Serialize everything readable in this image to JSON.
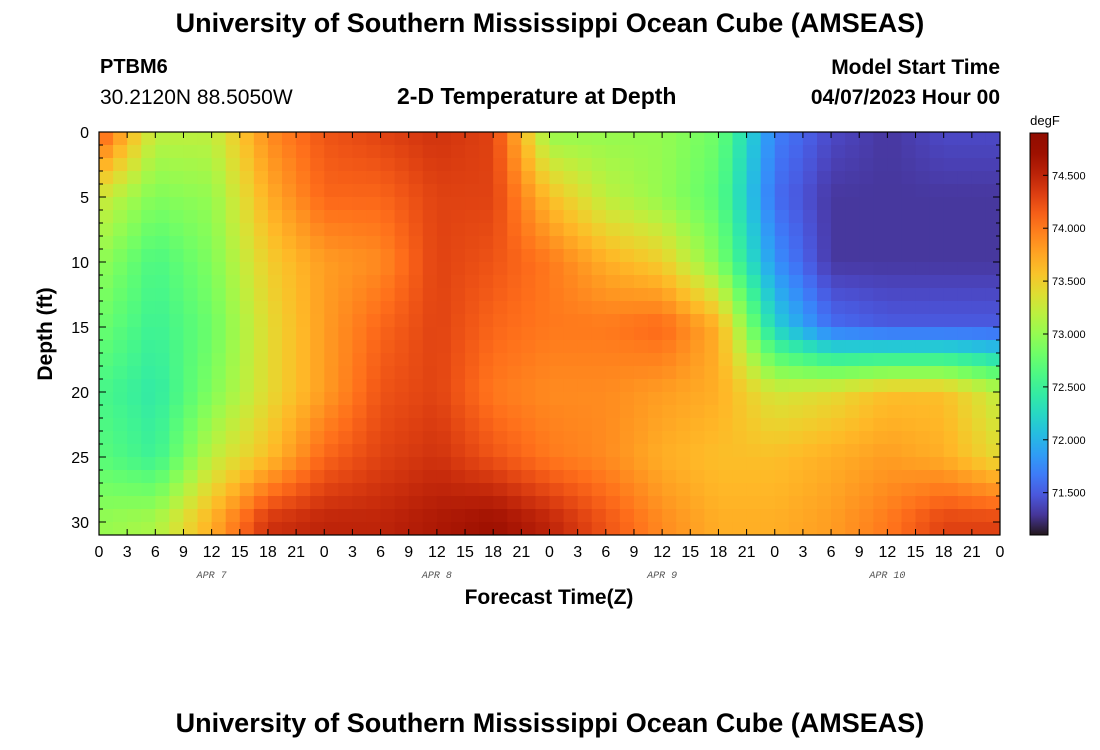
{
  "header": {
    "title": "University of Southern Mississippi Ocean Cube (AMSEAS)",
    "station": "PTBM6",
    "coords": "30.2120N  88.5050W",
    "subtitle": "2-D Temperature at Depth",
    "start_label": "Model Start Time",
    "start_value": "04/07/2023 Hour 00"
  },
  "footer": {
    "title": "University of Southern Mississippi Ocean Cube (AMSEAS)"
  },
  "chart_data": {
    "type": "heatmap",
    "title": "2-D Temperature at Depth",
    "xlabel": "Forecast Time(Z)",
    "ylabel": "Depth (ft)",
    "xlim": [
      0,
      96
    ],
    "ylim": [
      31,
      0
    ],
    "x_tick_labels": [
      "0",
      "3",
      "6",
      "9",
      "12",
      "15",
      "18",
      "21",
      "0",
      "3",
      "6",
      "9",
      "12",
      "15",
      "18",
      "21",
      "0",
      "3",
      "6",
      "9",
      "12",
      "15",
      "18",
      "21",
      "0",
      "3",
      "6",
      "9",
      "12",
      "15",
      "18",
      "21",
      "0"
    ],
    "day_labels": [
      {
        "label": "APR 7",
        "hour": 12
      },
      {
        "label": "APR 8",
        "hour": 36
      },
      {
        "label": "APR 9",
        "hour": 60
      },
      {
        "label": "APR 10",
        "hour": 84
      }
    ],
    "y_ticks": [
      0,
      5,
      10,
      15,
      20,
      25,
      30
    ],
    "colorbar": {
      "unit": "degF",
      "range": [
        71.1,
        74.9
      ],
      "ticks": [
        "74.500",
        "74.000",
        "73.500",
        "73.000",
        "72.500",
        "72.000",
        "71.500"
      ],
      "colormap": "turbo"
    },
    "x_hours": [
      0,
      6,
      12,
      18,
      24,
      30,
      36,
      42,
      48,
      54,
      60,
      66,
      72,
      78,
      84,
      90,
      96
    ],
    "depths_ft": [
      0,
      5,
      10,
      15,
      20,
      25,
      30
    ],
    "values_degF": [
      [
        74.2,
        73.2,
        73.2,
        73.9,
        74.2,
        74.3,
        74.4,
        74.3,
        73.0,
        73.0,
        73.0,
        72.8,
        71.7,
        71.4,
        71.3,
        71.4,
        71.4
      ],
      [
        73.3,
        72.9,
        73.0,
        73.7,
        74.1,
        74.1,
        74.3,
        74.3,
        73.6,
        73.2,
        73.0,
        72.7,
        71.6,
        71.3,
        71.3,
        71.3,
        71.3
      ],
      [
        73.0,
        72.6,
        72.9,
        73.5,
        73.8,
        73.9,
        74.3,
        74.2,
        74.0,
        73.7,
        73.5,
        72.9,
        71.8,
        71.3,
        71.3,
        71.3,
        71.3
      ],
      [
        72.8,
        72.5,
        72.8,
        73.4,
        73.8,
        74.1,
        74.3,
        74.1,
        74.0,
        74.0,
        74.1,
        73.7,
        72.2,
        71.6,
        71.5,
        71.5,
        71.5
      ],
      [
        72.6,
        72.4,
        72.9,
        73.4,
        73.8,
        74.2,
        74.3,
        74.0,
        73.9,
        73.9,
        73.8,
        73.7,
        73.3,
        73.4,
        73.6,
        73.6,
        73.2
      ],
      [
        72.7,
        72.5,
        73.2,
        73.6,
        74.1,
        74.3,
        74.4,
        74.2,
        74.0,
        73.9,
        73.7,
        73.6,
        73.6,
        73.7,
        73.8,
        73.7,
        73.4
      ],
      [
        73.0,
        73.1,
        73.7,
        74.4,
        74.5,
        74.5,
        74.6,
        74.7,
        74.5,
        74.2,
        73.9,
        73.7,
        73.7,
        73.8,
        74.0,
        74.3,
        74.3
      ]
    ]
  }
}
